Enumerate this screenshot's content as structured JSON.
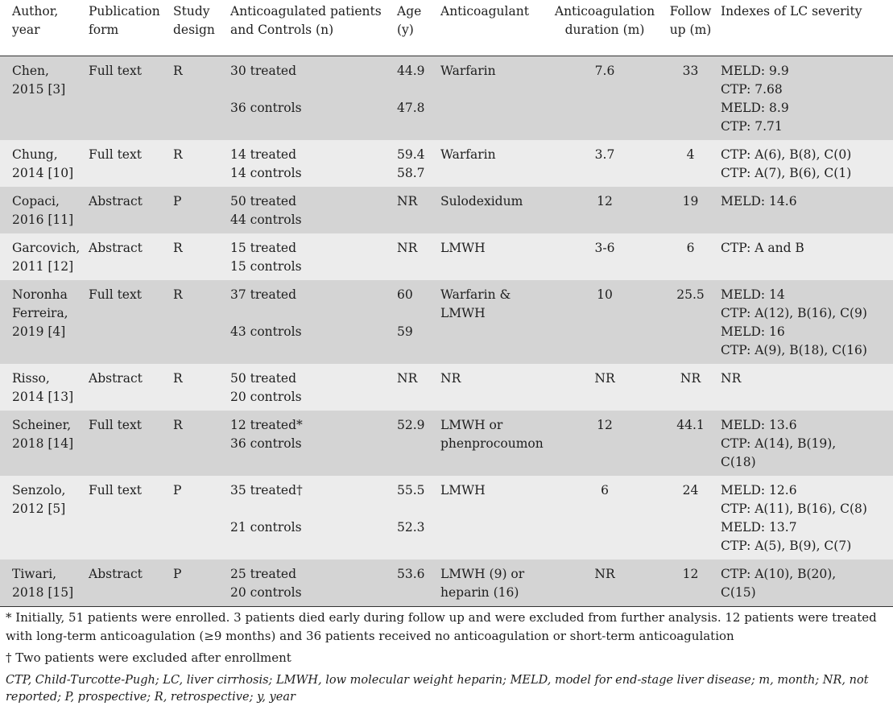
{
  "table": {
    "headers": [
      "Author, year",
      "Publication form",
      "Study design",
      "Anticoagulated patients and Controls (n)",
      "Age (y)",
      "Anticoagulant",
      "Anticoagulation duration (m)",
      "Follow up (m)",
      "Indexes of LC severity"
    ],
    "rows": [
      {
        "author": [
          "Chen,",
          "2015 [3]"
        ],
        "form": "Full text",
        "design": "R",
        "patients": [
          "30 treated",
          "",
          "36 controls"
        ],
        "age": [
          "44.9",
          "",
          "47.8"
        ],
        "anticoagulant": [
          "Warfarin"
        ],
        "duration": "7.6",
        "followup": "33",
        "severity": [
          "MELD: 9.9",
          "CTP: 7.68",
          "MELD: 8.9",
          "CTP: 7.71"
        ]
      },
      {
        "author": [
          "Chung,",
          "2014 [10]"
        ],
        "form": "Full text",
        "design": "R",
        "patients": [
          "14 treated",
          "14 controls"
        ],
        "age": [
          "59.4",
          "58.7"
        ],
        "anticoagulant": [
          "Warfarin"
        ],
        "duration": "3.7",
        "followup": "4",
        "severity": [
          "CTP: A(6), B(8), C(0)",
          "CTP: A(7), B(6), C(1)"
        ]
      },
      {
        "author": [
          "Copaci,",
          "2016 [11]"
        ],
        "form": "Abstract",
        "design": "P",
        "patients": [
          "50 treated",
          "44 controls"
        ],
        "age": [
          "NR"
        ],
        "anticoagulant": [
          "Sulodexidum"
        ],
        "duration": "12",
        "followup": "19",
        "severity": [
          "MELD: 14.6"
        ]
      },
      {
        "author": [
          "Garcovich,",
          "2011 [12]"
        ],
        "form": "Abstract",
        "design": "R",
        "patients": [
          "15 treated",
          "15 controls"
        ],
        "age": [
          "NR"
        ],
        "anticoagulant": [
          "LMWH"
        ],
        "duration": "3-6",
        "followup": "6",
        "severity": [
          "CTP: A and B"
        ]
      },
      {
        "author": [
          "Noronha",
          "Ferreira,",
          "2019 [4]"
        ],
        "form": "Full text",
        "design": "R",
        "patients": [
          "37 treated",
          "",
          "43 controls"
        ],
        "age": [
          "60",
          "",
          "59"
        ],
        "anticoagulant": [
          "Warfarin &",
          "LMWH"
        ],
        "duration": "10",
        "followup": "25.5",
        "severity": [
          "MELD: 14",
          "CTP: A(12), B(16), C(9)",
          "MELD: 16",
          "CTP: A(9), B(18), C(16)"
        ]
      },
      {
        "author": [
          "Risso,",
          "2014 [13]"
        ],
        "form": "Abstract",
        "design": "R",
        "patients": [
          "50 treated",
          "20 controls"
        ],
        "age": [
          "NR"
        ],
        "anticoagulant": [
          "NR"
        ],
        "duration": "NR",
        "followup": "NR",
        "severity": [
          "NR"
        ]
      },
      {
        "author": [
          "Scheiner,",
          "2018 [14]"
        ],
        "form": "Full text",
        "design": "R",
        "patients": [
          "12 treated*",
          "36 controls"
        ],
        "age": [
          "52.9"
        ],
        "anticoagulant": [
          "LMWH or",
          "phenprocoumon"
        ],
        "duration": "12",
        "followup": "44.1",
        "severity": [
          "MELD: 13.6",
          "CTP: A(14), B(19),",
          "C(18)"
        ]
      },
      {
        "author": [
          "Senzolo,",
          "2012 [5]"
        ],
        "form": "Full text",
        "design": "P",
        "patients": [
          "35 treated†",
          "",
          "21 controls"
        ],
        "age": [
          "55.5",
          "",
          "52.3"
        ],
        "anticoagulant": [
          "LMWH"
        ],
        "duration": "6",
        "followup": "24",
        "severity": [
          "MELD: 12.6",
          "CTP: A(11), B(16), C(8)",
          "MELD: 13.7",
          "CTP: A(5), B(9), C(7)"
        ]
      },
      {
        "author": [
          "Tiwari,",
          "2018 [15]"
        ],
        "form": "Abstract",
        "design": "P",
        "patients": [
          "25 treated",
          "20 controls"
        ],
        "age": [
          "53.6"
        ],
        "anticoagulant": [
          "LMWH (9) or",
          "heparin (16)"
        ],
        "duration": "NR",
        "followup": "12",
        "severity": [
          "CTP: A(10), B(20),",
          "C(15)"
        ]
      }
    ]
  },
  "footnotes": {
    "asterisk": "* Initially, 51 patients were enrolled. 3 patients died early during follow up and were excluded from further analysis. 12 patients were treated with long-term anticoagulation (≥9 months) and 36 patients received no anticoagulation or short-term anticoagulation",
    "dagger": "† Two patients were excluded after enrollment",
    "abbreviations": "CTP, Child-Turcotte-Pugh; LC, liver cirrhosis; LMWH, low molecular weight heparin; MELD, model for end-stage liver disease; m, month; NR, not reported; P, prospective; R, retrospective; y, year"
  }
}
